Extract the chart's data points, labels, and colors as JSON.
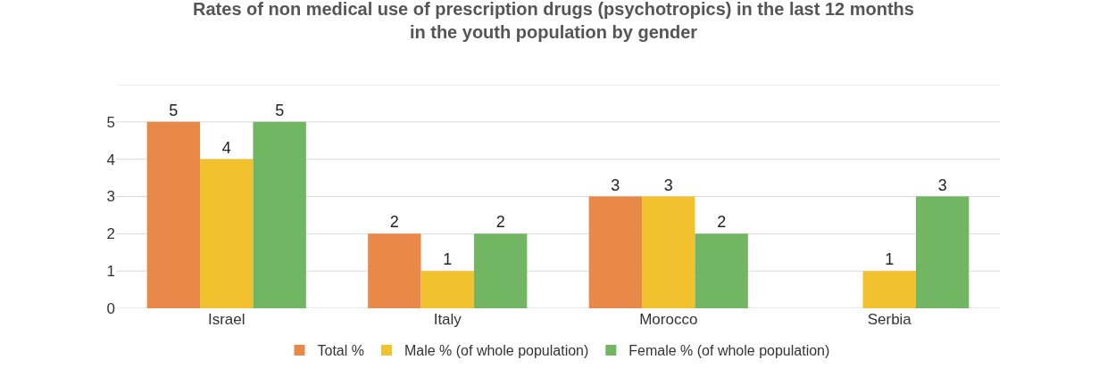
{
  "chart_data": {
    "type": "bar",
    "title": "Rates of non medical use of prescription drugs (psychotropics) in the last 12 months  in the youth population by gender",
    "categories": [
      "Israel",
      "Italy",
      "Morocco",
      "Serbia"
    ],
    "series": [
      {
        "name": "Total %",
        "color": "#e8894a",
        "values": [
          5,
          2,
          3,
          null
        ]
      },
      {
        "name": "Male % (of whole population)",
        "color": "#f2c12e",
        "values": [
          4,
          1,
          3,
          1
        ]
      },
      {
        "name": "Female % (of whole population)",
        "color": "#72b562",
        "values": [
          5,
          2,
          2,
          3
        ]
      }
    ],
    "ylim": [
      0,
      6
    ],
    "yticks": [
      0,
      1,
      2,
      3,
      4,
      5,
      {
        "value": 6,
        "label": null
      }
    ],
    "grid": "y",
    "legend": "bottom",
    "data_labels": true
  }
}
